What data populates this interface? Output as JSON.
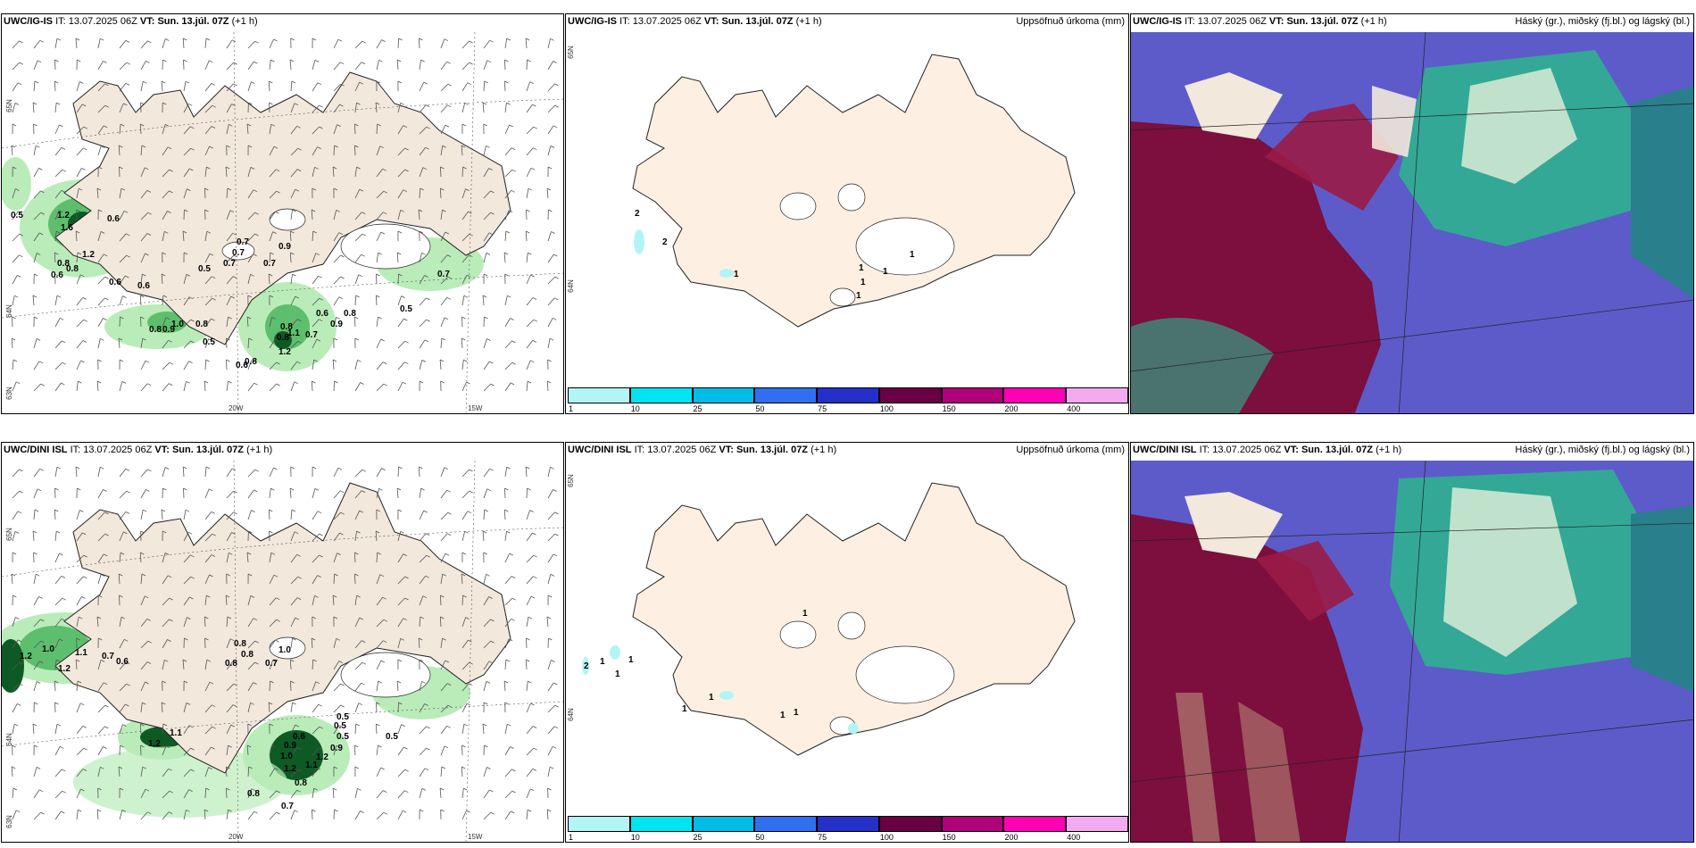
{
  "rows": [
    {
      "model": "UWC/IG-IS",
      "it_label": "IT:",
      "it_value": "13.07.2025 06Z",
      "vt_label": "VT:",
      "vt_value": "Sun. 13.júl. 07Z",
      "lead": "(+1 h)",
      "precip_title": "Uppsöfnuð úrkoma (mm)",
      "cloud_title": "Háský (gr.), miðský (fj.bl.) og lágský (bl.)",
      "wind_lat_labels": [
        "65N",
        "64N",
        "63N"
      ],
      "wind_lon_labels": [
        "20W",
        "15W"
      ],
      "precip_lat_labels": [
        "65N",
        "64N"
      ],
      "wind_values": [
        "0.5",
        "1.2",
        "1.6",
        "0.6",
        "1.2",
        "0.8",
        "0.6",
        "0.8",
        "0.6",
        "0.6",
        "0.8",
        "0.9",
        "1.0",
        "0.8",
        "0.5",
        "0.5",
        "0.7",
        "0.7",
        "0.7",
        "0.7",
        "0.9",
        "0.6",
        "0.8",
        "0.8",
        "1.1",
        "0.9",
        "0.7",
        "0.8",
        "1.2",
        "0.8",
        "0.6",
        "0.5",
        "0.7"
      ],
      "precip_values": [
        "2",
        "2",
        "1",
        "1",
        "1",
        "1",
        "1",
        "1"
      ]
    },
    {
      "model": "UWC/DINI ISL",
      "it_label": "IT:",
      "it_value": "13.07.2025 06Z",
      "vt_label": "VT:",
      "vt_value": "Sun. 13.júl. 07Z",
      "lead": "(+1 h)",
      "precip_title": "Uppsöfnuð úrkoma (mm)",
      "cloud_title": "Háský (gr.), miðský (fj.bl.) og lágský (bl.)",
      "wind_lat_labels": [
        "65N",
        "64N",
        "63N"
      ],
      "wind_lon_labels": [
        "20W",
        "15W"
      ],
      "precip_lat_labels": [
        "65N",
        "64N"
      ],
      "wind_values": [
        "1.2",
        "1.0",
        "1.1",
        "0.7",
        "0.6",
        "1.2",
        "0.8",
        "0.8",
        "0.8",
        "1.0",
        "0.7",
        "1.1",
        "1.2",
        "0.5",
        "0.5",
        "0.5",
        "0.6",
        "0.9",
        "1.2",
        "0.9",
        "1.1",
        "1.0",
        "1.2",
        "0.8",
        "0.7",
        "0.8",
        "0.5"
      ],
      "precip_values": [
        "2",
        "1",
        "1",
        "1",
        "1",
        "1",
        "1",
        "1",
        "1"
      ]
    }
  ],
  "colorbar": {
    "ticks": [
      "1",
      "10",
      "25",
      "50",
      "75",
      "100",
      "150",
      "200",
      "400"
    ],
    "colors": [
      "#b3f5f7",
      "#00e5f0",
      "#00bde6",
      "#2f6ff0",
      "#2430c8",
      "#6a0044",
      "#b0007a",
      "#ff00b4",
      "#f2aaf0"
    ]
  },
  "colors": {
    "land": "#f2e8dc",
    "land_precip": "#fdf0e2",
    "green_light": "#b9ecb9",
    "green_mid": "#5dbf6d",
    "green_dark": "#0e5a25",
    "cloud_base": "#5d5bc9",
    "cloud_high": "#7c0f3d",
    "cloud_mid": "#2bb68d"
  }
}
